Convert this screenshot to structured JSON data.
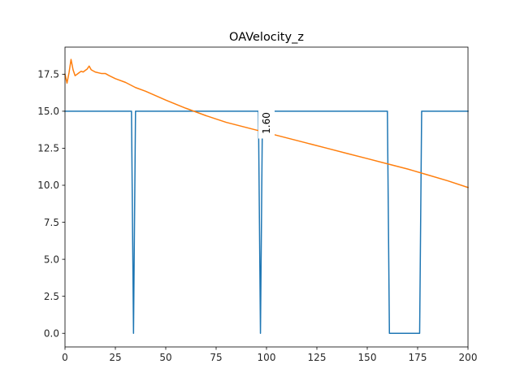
{
  "chart_data": {
    "type": "line",
    "title": "OAVelocity_z",
    "xlabel": "",
    "ylabel": "",
    "xlim": [
      0,
      200
    ],
    "ylim": [
      -0.92,
      19.33
    ],
    "xticks": [
      0,
      25,
      50,
      75,
      100,
      125,
      150,
      175,
      200
    ],
    "xtick_labels": [
      "0",
      "25",
      "50",
      "75",
      "100",
      "125",
      "150",
      "175",
      "200"
    ],
    "yticks": [
      0,
      2.5,
      5,
      7.5,
      10,
      12.5,
      15,
      17.5
    ],
    "ytick_labels": [
      "0.0",
      "2.5",
      "5.0",
      "7.5",
      "10.0",
      "12.5",
      "15.0",
      "17.5"
    ],
    "grid": false,
    "legend": "none",
    "series": [
      {
        "color": "#1f77b4",
        "points": [
          [
            0,
            15
          ],
          [
            33,
            15
          ],
          [
            34,
            0
          ],
          [
            35,
            15
          ],
          [
            96,
            15
          ],
          [
            97,
            0
          ],
          [
            98,
            15
          ],
          [
            160,
            15
          ],
          [
            161,
            0
          ],
          [
            176,
            0
          ],
          [
            177,
            15
          ],
          [
            200,
            15
          ]
        ]
      },
      {
        "color": "#ff7f0e",
        "points": [
          [
            0,
            17.5
          ],
          [
            1,
            16.9
          ],
          [
            2,
            17.6
          ],
          [
            3,
            18.5
          ],
          [
            4,
            17.8
          ],
          [
            5,
            17.4
          ],
          [
            6,
            17.5
          ],
          [
            7,
            17.6
          ],
          [
            8,
            17.7
          ],
          [
            9,
            17.65
          ],
          [
            10,
            17.75
          ],
          [
            11,
            17.85
          ],
          [
            12,
            18.05
          ],
          [
            13,
            17.8
          ],
          [
            15,
            17.65
          ],
          [
            18,
            17.55
          ],
          [
            20,
            17.55
          ],
          [
            22,
            17.4
          ],
          [
            25,
            17.2
          ],
          [
            30,
            16.95
          ],
          [
            35,
            16.6
          ],
          [
            40,
            16.35
          ],
          [
            50,
            15.75
          ],
          [
            60,
            15.2
          ],
          [
            70,
            14.7
          ],
          [
            80,
            14.25
          ],
          [
            90,
            13.9
          ],
          [
            100,
            13.55
          ],
          [
            110,
            13.2
          ],
          [
            120,
            12.85
          ],
          [
            130,
            12.5
          ],
          [
            140,
            12.15
          ],
          [
            150,
            11.8
          ],
          [
            160,
            11.45
          ],
          [
            170,
            11.1
          ],
          [
            180,
            10.7
          ],
          [
            190,
            10.3
          ],
          [
            200,
            9.85
          ]
        ]
      }
    ],
    "annotations": [
      {
        "text": "1.60",
        "x": 100,
        "y": 14.2,
        "rotation": -90
      }
    ]
  }
}
